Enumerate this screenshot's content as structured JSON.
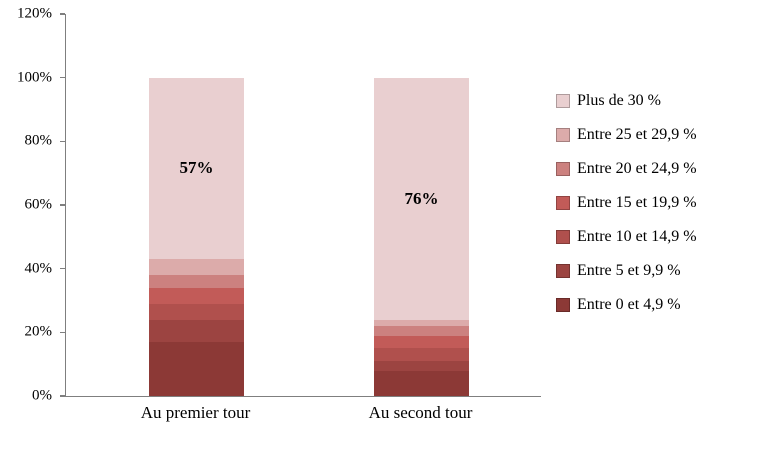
{
  "chart_data": {
    "type": "bar",
    "stacked": true,
    "title": "",
    "xlabel": "",
    "ylabel": "",
    "ylim": [
      0,
      120
    ],
    "yticks": [
      {
        "label": "0%",
        "value": 0
      },
      {
        "label": "20%",
        "value": 20
      },
      {
        "label": "40%",
        "value": 40
      },
      {
        "label": "60%",
        "value": 60
      },
      {
        "label": "80%",
        "value": 80
      },
      {
        "label": "100%",
        "value": 100
      },
      {
        "label": "120%",
        "value": 120
      }
    ],
    "categories": [
      "Au premier tour",
      "Au second tour"
    ],
    "series": [
      {
        "name": "Entre 0 et 4,9 %",
        "color": "#8c3936",
        "values": [
          17,
          8
        ]
      },
      {
        "name": "Entre 5 et 9,9 %",
        "color": "#9c4441",
        "values": [
          7,
          3
        ]
      },
      {
        "name": "Entre 10 et 14,9 %",
        "color": "#b0504d",
        "values": [
          5,
          4
        ]
      },
      {
        "name": "Entre 15 et 19,9 %",
        "color": "#c25b58",
        "values": [
          5,
          4
        ]
      },
      {
        "name": "Entre 20 et 24,9 %",
        "color": "#cc817f",
        "values": [
          4,
          3
        ]
      },
      {
        "name": "Entre 25 et 29,9 %",
        "color": "#dcabaa",
        "values": [
          5,
          2
        ]
      },
      {
        "name": "Plus de 30 %",
        "color": "#e9cfd0",
        "values": [
          57,
          76
        ],
        "data_labels": [
          "57%",
          "76%"
        ]
      }
    ],
    "legend_position": "right",
    "grid": false,
    "background": "#ffffff",
    "axis_color": "#7f7f7f"
  }
}
